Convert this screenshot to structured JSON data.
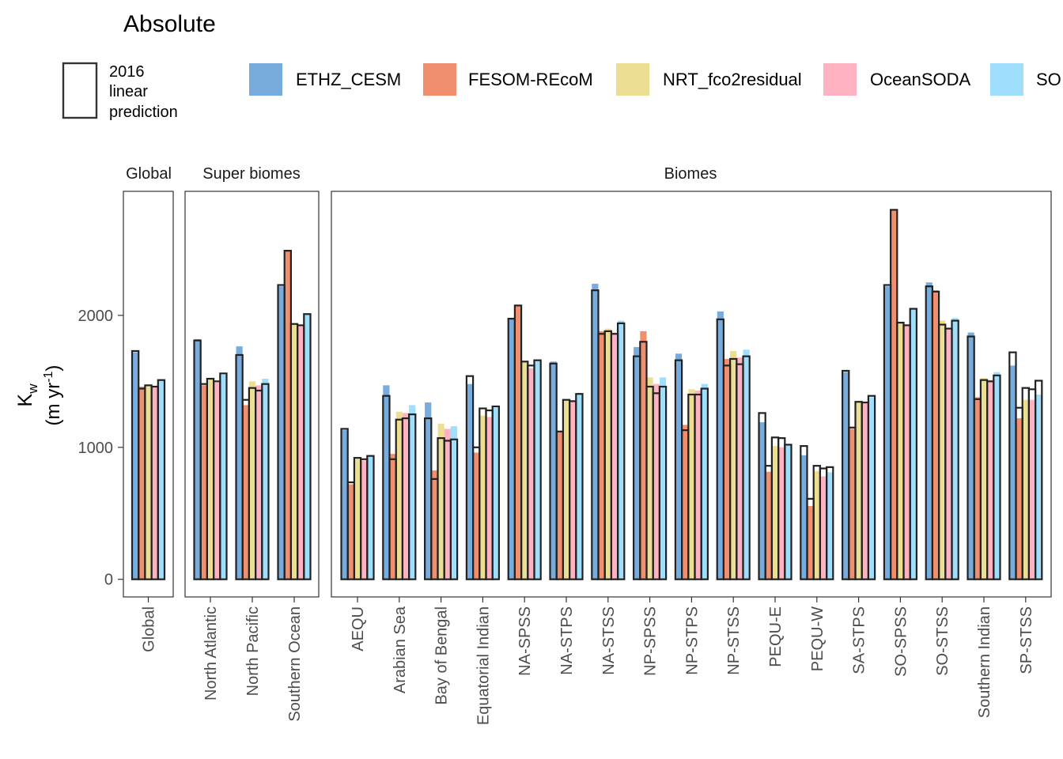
{
  "chart_data": {
    "type": "bar",
    "title": "Absolute",
    "ylabel_main": "K",
    "ylabel_sub": "w",
    "ylabel_units": [
      "(m yr",
      "-1",
      ")"
    ],
    "ylim": [
      -100,
      2950
    ],
    "yticks": [
      0,
      1000,
      2000
    ],
    "grid": false,
    "legend_position": "top",
    "legend": {
      "outline_label": [
        "2016",
        "linear",
        "prediction"
      ],
      "series_names": [
        "ETHZ_CESM",
        "FESOM-REcoM",
        "NRT_fco2residual",
        "OceanSODA",
        "SO"
      ]
    },
    "series_colors": [
      "#4a90d2",
      "#ea6a3d",
      "#e6d36d",
      "#ff9aae",
      "#7fd3fb"
    ],
    "outline_color": "#222222",
    "panels": [
      {
        "strip": "Global",
        "categories": [
          "Global"
        ],
        "values": [
          [
            1720,
            1460,
            1475,
            1455,
            1505
          ]
        ],
        "prediction": [
          [
            1730,
            1445,
            1470,
            1460,
            1510
          ]
        ]
      },
      {
        "strip": "Super biomes",
        "categories": [
          "North Atlantic",
          "North Pacific",
          "Southern Ocean"
        ],
        "values": [
          [
            1820,
            1470,
            1515,
            1490,
            1550
          ],
          [
            1765,
            1320,
            1500,
            1470,
            1520
          ],
          [
            2220,
            2490,
            1935,
            1920,
            2005
          ]
        ],
        "prediction": [
          [
            1810,
            1480,
            1520,
            1500,
            1560
          ],
          [
            1700,
            1360,
            1450,
            1430,
            1480
          ],
          [
            2230,
            2490,
            1935,
            1925,
            2010
          ]
        ]
      },
      {
        "strip": "Biomes",
        "categories": [
          "AEQU",
          "Arabian Sea",
          "Bay of Bengal",
          "Equatorial Indian",
          "NA-SPSS",
          "NA-STPS",
          "NA-STSS",
          "NP-SPSS",
          "NP-STPS",
          "NP-STSS",
          "PEQU-E",
          "PEQU-W",
          "SA-STPS",
          "SO-SPSS",
          "SO-STSS",
          "Southern Indian",
          "SP-STSS"
        ],
        "values": [
          [
            1130,
            720,
            910,
            900,
            930
          ],
          [
            1470,
            950,
            1270,
            1260,
            1320
          ],
          [
            1340,
            825,
            1180,
            1140,
            1160
          ],
          [
            1480,
            960,
            1240,
            1230,
            1300
          ],
          [
            1970,
            2080,
            1650,
            1600,
            1660
          ],
          [
            1650,
            1120,
            1360,
            1350,
            1400
          ],
          [
            2240,
            1880,
            1900,
            1870,
            1960
          ],
          [
            1760,
            1880,
            1530,
            1480,
            1530
          ],
          [
            1710,
            1170,
            1440,
            1430,
            1480
          ],
          [
            2030,
            1670,
            1730,
            1680,
            1740
          ],
          [
            1190,
            815,
            1010,
            1000,
            1020
          ],
          [
            940,
            555,
            820,
            780,
            810
          ],
          [
            1570,
            1140,
            1350,
            1340,
            1380
          ],
          [
            2220,
            2800,
            1940,
            1920,
            2050
          ],
          [
            2250,
            2190,
            1960,
            1900,
            1980
          ],
          [
            1870,
            1380,
            1525,
            1510,
            1570
          ],
          [
            1620,
            1220,
            1360,
            1360,
            1400
          ]
        ],
        "prediction": [
          [
            1140,
            735,
            920,
            910,
            935
          ],
          [
            1390,
            910,
            1210,
            1220,
            1250
          ],
          [
            1220,
            760,
            1070,
            1050,
            1060
          ],
          [
            1540,
            1000,
            1295,
            1280,
            1310
          ],
          [
            1975,
            2075,
            1650,
            1620,
            1660
          ],
          [
            1635,
            1120,
            1360,
            1350,
            1405
          ],
          [
            2190,
            1860,
            1880,
            1860,
            1940
          ],
          [
            1690,
            1800,
            1460,
            1410,
            1460
          ],
          [
            1660,
            1130,
            1400,
            1400,
            1445
          ],
          [
            1970,
            1620,
            1670,
            1630,
            1690
          ],
          [
            1260,
            860,
            1075,
            1070,
            1020
          ],
          [
            1010,
            610,
            860,
            840,
            850
          ],
          [
            1580,
            1150,
            1345,
            1340,
            1390
          ],
          [
            2230,
            2800,
            1945,
            1925,
            2050
          ],
          [
            2220,
            2180,
            1930,
            1900,
            1960
          ],
          [
            1840,
            1365,
            1510,
            1500,
            1545
          ],
          [
            1720,
            1300,
            1450,
            1440,
            1505
          ]
        ]
      }
    ]
  }
}
